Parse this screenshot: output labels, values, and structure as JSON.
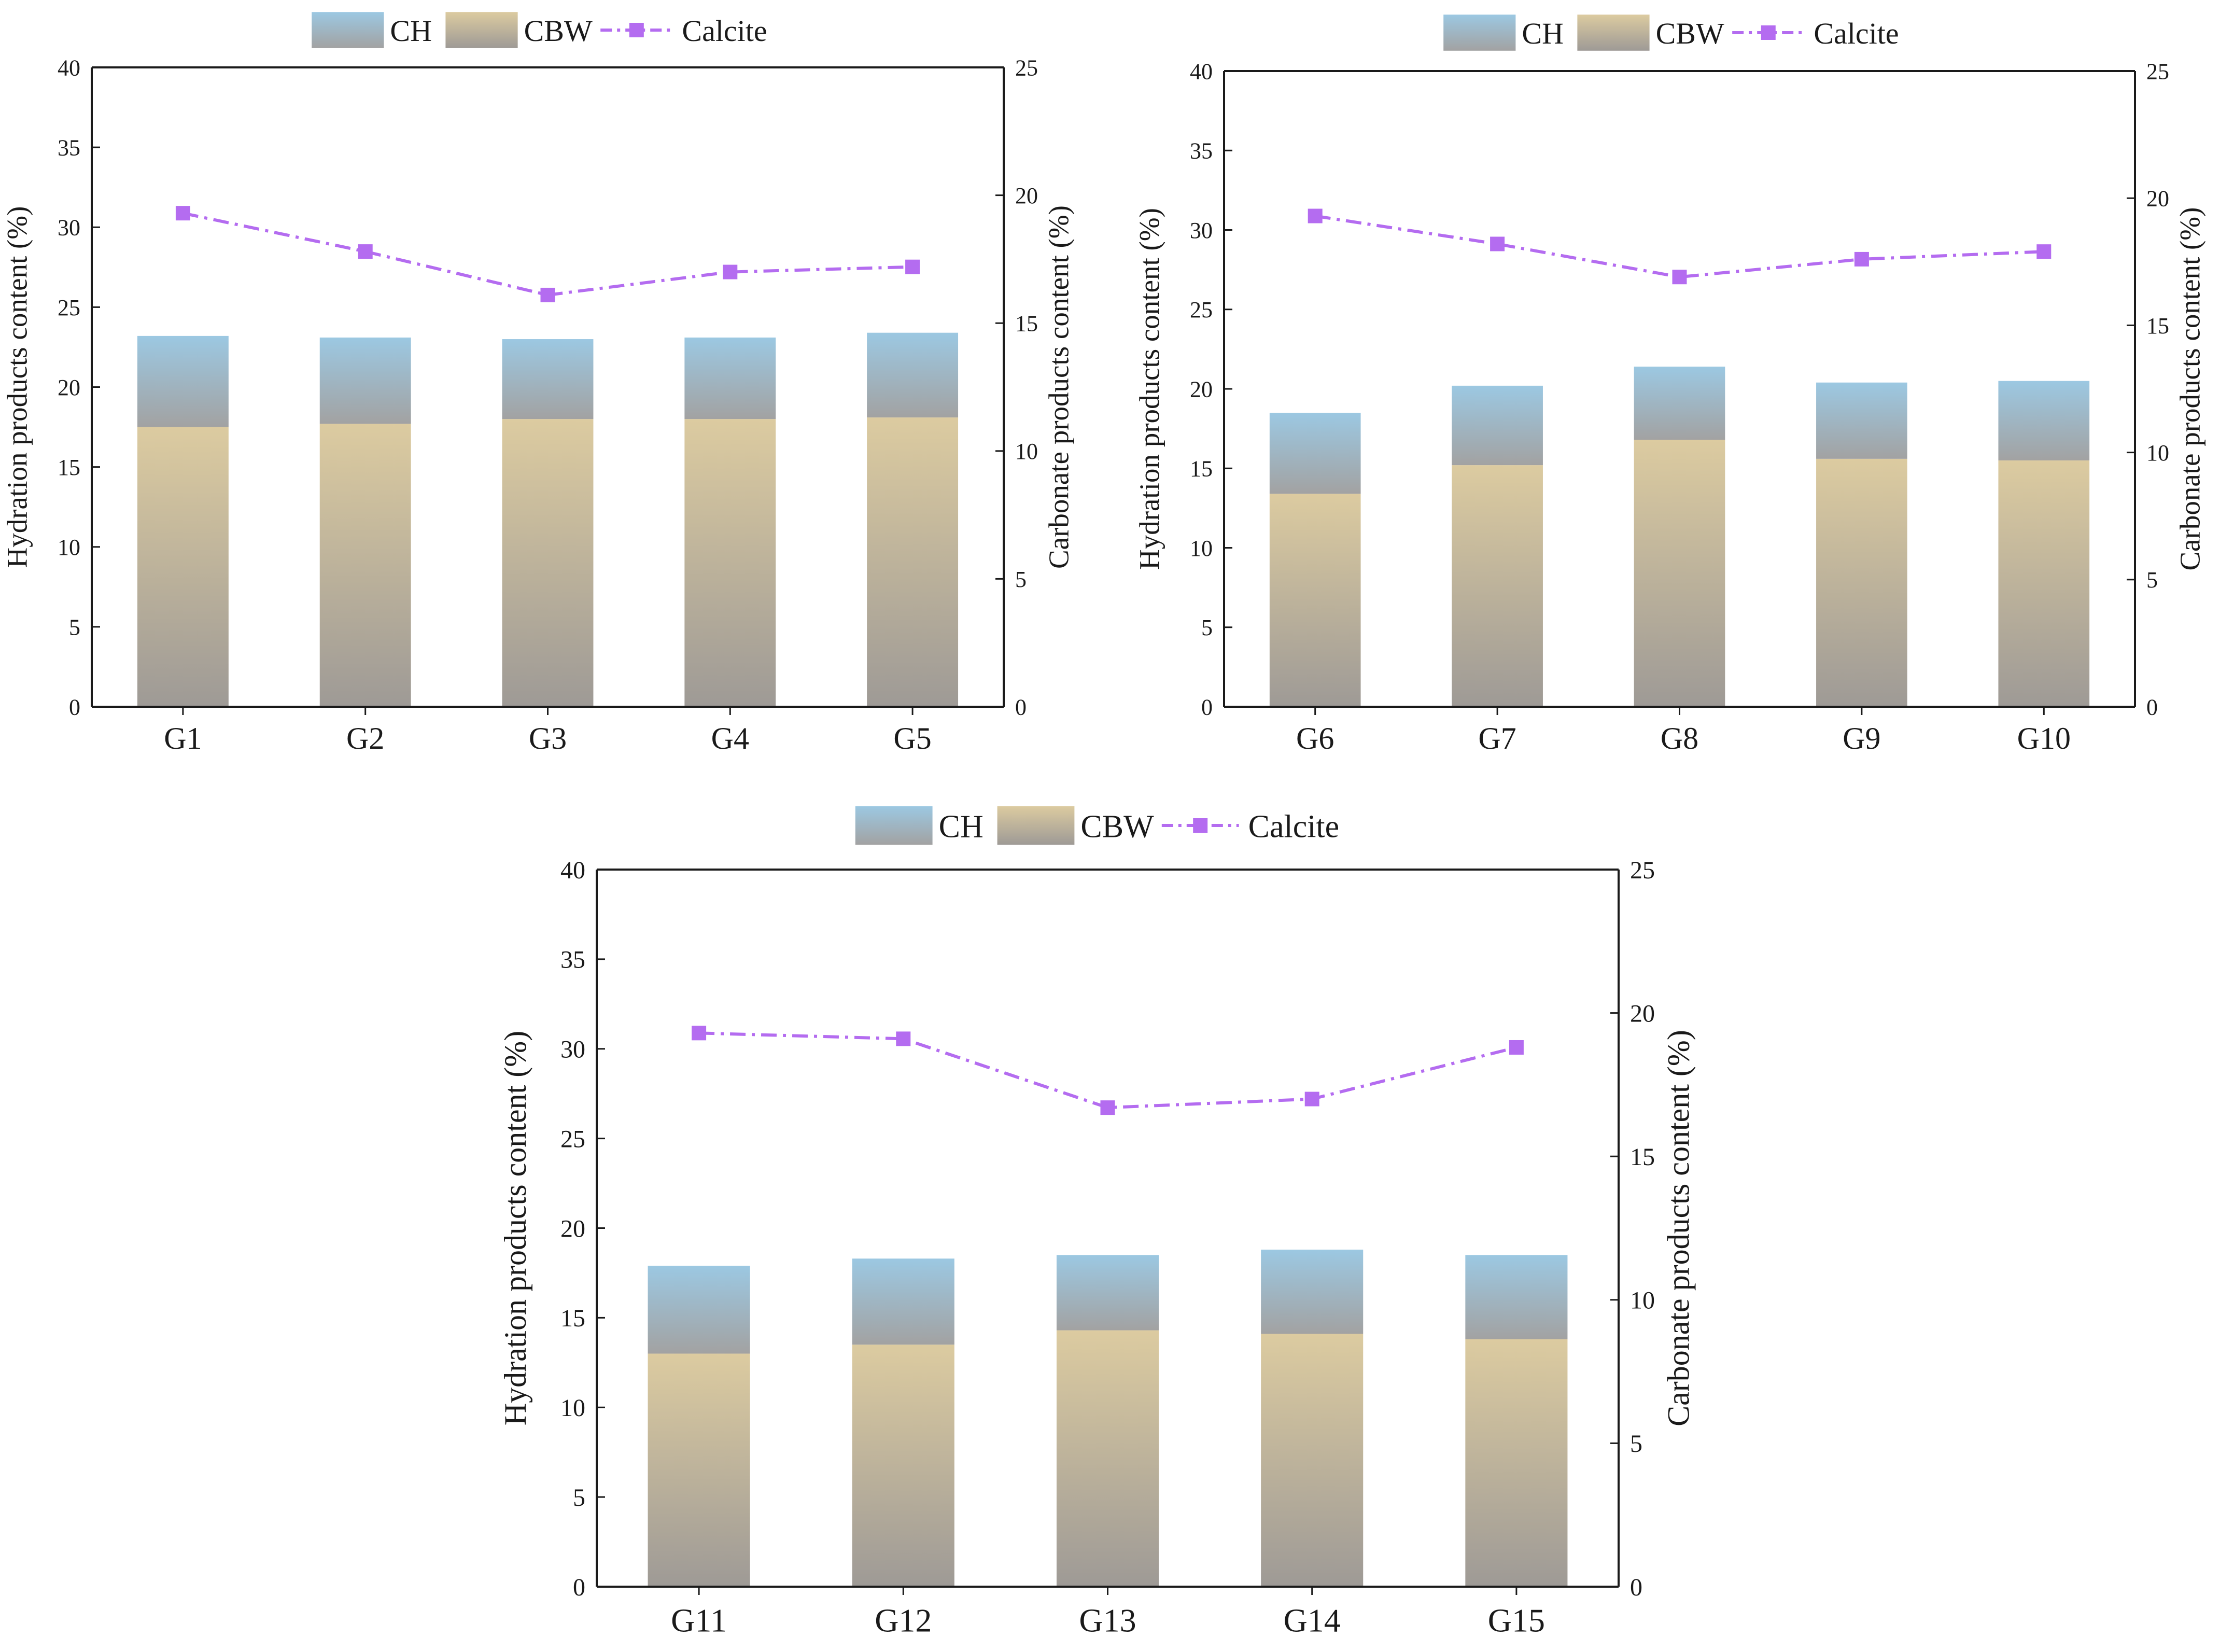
{
  "legend": {
    "ch_label": "CH",
    "cbw_label": "CBW",
    "calcite_label": "Calcite"
  },
  "colors": {
    "ch_top": "#9cc8e2",
    "ch_bottom": "#a2a2a2",
    "cbw_top": "#dccba0",
    "cbw_bottom": "#9e9a96",
    "calcite": "#b46cf0",
    "axis": "#1a1a1a"
  },
  "chart_data": [
    {
      "type": "bar",
      "stacked": true,
      "categories": [
        "G1",
        "G2",
        "G3",
        "G4",
        "G5"
      ],
      "series": [
        {
          "name": "CBW",
          "axis": "left",
          "values": [
            17.5,
            17.7,
            18.0,
            18.0,
            18.1
          ]
        },
        {
          "name": "CH",
          "axis": "left",
          "values": [
            5.7,
            5.4,
            5.0,
            5.1,
            5.3
          ]
        },
        {
          "name": "Calcite",
          "axis": "right",
          "kind": "line",
          "values": [
            19.3,
            17.8,
            16.1,
            17.0,
            17.2
          ]
        }
      ],
      "ylabel": "Hydration products content (%)",
      "y2label": "Carbonate products content (%)",
      "ylim": [
        0,
        40
      ],
      "y2lim": [
        0,
        25
      ],
      "yticks": [
        "0",
        "5",
        "10",
        "15",
        "20",
        "25",
        "30",
        "35",
        "40"
      ],
      "y2ticks": [
        "0",
        "5",
        "10",
        "15",
        "20",
        "25"
      ],
      "legend_position": "top-center"
    },
    {
      "type": "bar",
      "stacked": true,
      "categories": [
        "G6",
        "G7",
        "G8",
        "G9",
        "G10"
      ],
      "series": [
        {
          "name": "CBW",
          "axis": "left",
          "values": [
            13.4,
            15.2,
            16.8,
            15.6,
            15.5
          ]
        },
        {
          "name": "CH",
          "axis": "left",
          "values": [
            5.1,
            5.0,
            4.6,
            4.8,
            5.0
          ]
        },
        {
          "name": "Calcite",
          "axis": "right",
          "kind": "line",
          "values": [
            19.3,
            18.2,
            16.9,
            17.6,
            17.9
          ]
        }
      ],
      "ylabel": "Hydration products content (%)",
      "y2label": "Carbonate products content (%)",
      "ylim": [
        0,
        40
      ],
      "y2lim": [
        0,
        25
      ],
      "yticks": [
        "0",
        "5",
        "10",
        "15",
        "20",
        "25",
        "30",
        "35",
        "40"
      ],
      "y2ticks": [
        "0",
        "5",
        "10",
        "15",
        "20",
        "25"
      ],
      "legend_position": "top-center"
    },
    {
      "type": "bar",
      "stacked": true,
      "categories": [
        "G11",
        "G12",
        "G13",
        "G14",
        "G15"
      ],
      "series": [
        {
          "name": "CBW",
          "axis": "left",
          "values": [
            13.0,
            13.5,
            14.3,
            14.1,
            13.8
          ]
        },
        {
          "name": "CH",
          "axis": "left",
          "values": [
            4.9,
            4.8,
            4.2,
            4.7,
            4.7
          ]
        },
        {
          "name": "Calcite",
          "axis": "right",
          "kind": "line",
          "values": [
            19.3,
            19.1,
            16.7,
            17.0,
            18.8
          ]
        }
      ],
      "ylabel": "Hydration products content (%)",
      "y2label": "Carbonate products content (%)",
      "ylim": [
        0,
        40
      ],
      "y2lim": [
        0,
        25
      ],
      "yticks": [
        "0",
        "5",
        "10",
        "15",
        "20",
        "25",
        "30",
        "35",
        "40"
      ],
      "y2ticks": [
        "0",
        "5",
        "10",
        "15",
        "20",
        "25"
      ],
      "legend_position": "top-center"
    }
  ]
}
